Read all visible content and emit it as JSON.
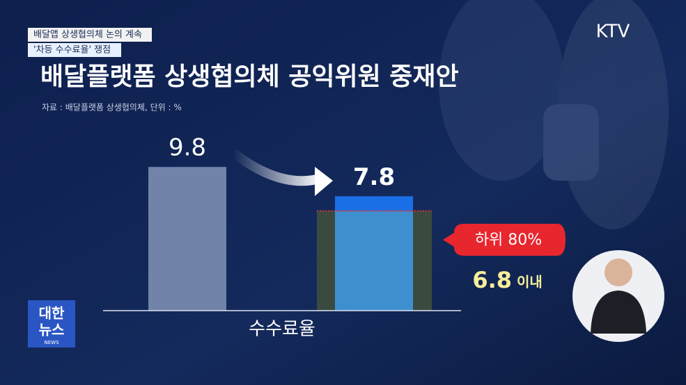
{
  "header": {
    "tag1": "배달앱 상생협의체 논의 계속",
    "tag2": "'차등 수수료율' 쟁점",
    "channel": "KTV"
  },
  "logo": {
    "line1": "대한",
    "line2": "뉴스",
    "line3": "NEWS"
  },
  "chart_data": {
    "type": "bar",
    "title": "배달플랫폼 상생협의체 공익위원 중재안",
    "source": "자료 : 배달플랫폼 상생협의체, 단위 : %",
    "x_label": "수수료율",
    "values": [
      9.8,
      7.8
    ],
    "colors": [
      "#7183a8",
      "#1a6fe6"
    ],
    "ylim": [
      0,
      10
    ],
    "threshold": {
      "label": "하위 80%",
      "value": 6.8,
      "suffix": "이내",
      "color": "#3d8fd0",
      "band_color": "#3b4a3f",
      "line_color": "#e03030"
    }
  }
}
